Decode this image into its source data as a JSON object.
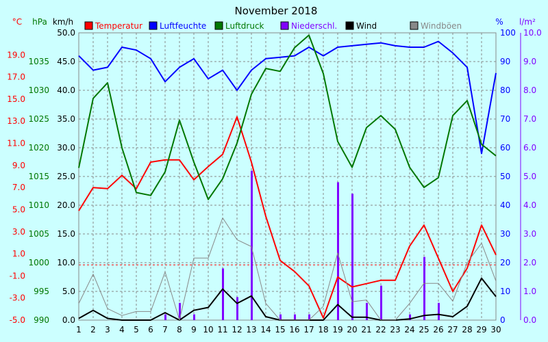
{
  "chart_data": {
    "type": "line",
    "title": "November 2018",
    "x": [
      1,
      2,
      3,
      4,
      5,
      6,
      7,
      8,
      9,
      10,
      11,
      12,
      13,
      14,
      15,
      16,
      17,
      18,
      19,
      20,
      21,
      22,
      23,
      24,
      25,
      26,
      27,
      28,
      29,
      30
    ],
    "axes": {
      "celsius": {
        "unit": "°C",
        "min": -5.0,
        "max": 21.0,
        "ticks": [
          -5.0,
          -3.0,
          -1.0,
          1.0,
          3.0,
          5.0,
          7.0,
          9.0,
          11.0,
          13.0,
          15.0,
          17.0,
          19.0
        ]
      },
      "hpa": {
        "unit": "hPa",
        "min": 990,
        "max": 1040,
        "ticks": [
          990,
          995,
          1000,
          1005,
          1010,
          1015,
          1020,
          1025,
          1030,
          1035
        ]
      },
      "kmh": {
        "unit": "km/h",
        "min": 0,
        "max": 50,
        "ticks": [
          0.0,
          5.0,
          10.0,
          15.0,
          20.0,
          25.0,
          30.0,
          35.0,
          40.0,
          45.0,
          50.0
        ]
      },
      "percent": {
        "unit": "%",
        "min": 0,
        "max": 100,
        "ticks": [
          0,
          10,
          20,
          30,
          40,
          50,
          60,
          70,
          80,
          90,
          100
        ]
      },
      "precip": {
        "unit": "l/m²",
        "min": 0,
        "max": 10,
        "ticks": [
          0.0,
          1.0,
          2.0,
          3.0,
          4.0,
          5.0,
          6.0,
          7.0,
          8.0,
          9.0,
          10.0
        ]
      }
    },
    "grid": true,
    "legend_position": "top",
    "series": [
      {
        "name": "Temperatur",
        "axis": "celsius",
        "color": "#ff0000",
        "values": [
          4.9,
          7.0,
          6.9,
          8.1,
          6.9,
          9.3,
          9.5,
          9.5,
          7.7,
          8.9,
          10.0,
          13.4,
          9.3,
          4.4,
          0.4,
          -0.6,
          -1.9,
          -4.8,
          -1.1,
          -2.0,
          -1.7,
          -1.4,
          -1.4,
          1.7,
          3.6,
          0.6,
          -2.4,
          -0.3,
          3.6,
          0.9
        ]
      },
      {
        "name": "Luftfeuchte",
        "axis": "percent",
        "color": "#0000ff",
        "values": [
          92,
          87,
          88,
          95,
          94,
          91,
          83,
          88,
          91,
          84,
          87,
          80,
          87,
          91,
          91.5,
          92,
          95,
          92,
          95,
          95.5,
          96,
          96.5,
          95.5,
          95,
          95,
          97,
          93,
          88,
          58,
          86
        ]
      },
      {
        "name": "Luftdruck",
        "axis": "hPa",
        "color": "#007700",
        "values": [
          1016.5,
          1028.6,
          1031.3,
          1020.0,
          1012.2,
          1011.7,
          1015.8,
          1024.8,
          1017.5,
          1011.0,
          1014.6,
          1020.8,
          1029.3,
          1033.8,
          1033.3,
          1037.4,
          1039.6,
          1032.9,
          1021.1,
          1016.6,
          1023.5,
          1025.6,
          1023.2,
          1016.6,
          1013.1,
          1014.8,
          1025.6,
          1028.2,
          1020.6,
          1018.6
        ]
      },
      {
        "name": "Niederschl.",
        "axis": "precip",
        "color": "#8000ff",
        "style": "bars",
        "values": [
          0,
          0,
          0,
          0,
          0,
          0,
          0.2,
          0.6,
          0.2,
          0,
          1.8,
          0.8,
          5.2,
          0,
          0.2,
          0.2,
          0.2,
          0,
          4.8,
          4.4,
          0.6,
          1.2,
          0,
          0.2,
          2.2,
          0.6,
          0,
          0,
          0,
          0
        ]
      },
      {
        "name": "Wind",
        "axis": "kmh",
        "color": "#000000",
        "values": [
          0.3,
          1.7,
          0.3,
          0,
          0,
          0,
          1.3,
          0,
          1.7,
          2.2,
          5.4,
          2.9,
          4.2,
          0.6,
          0,
          0,
          0,
          0,
          2.7,
          0.5,
          0.5,
          0,
          0,
          0.2,
          0.8,
          1.0,
          0.6,
          2.4,
          7.3,
          4.1
        ]
      },
      {
        "name": "Windböen",
        "axis": "kmh",
        "color": "#888888",
        "values": [
          2.9,
          8.0,
          2.0,
          0.8,
          1.5,
          1.5,
          8.4,
          0,
          10.8,
          10.8,
          17.8,
          14.0,
          12.8,
          2.9,
          0,
          0,
          0,
          2.4,
          11.7,
          3.2,
          3.5,
          0,
          0,
          2.9,
          6.4,
          6.4,
          3.3,
          10.0,
          13.4,
          6.8
        ]
      }
    ]
  }
}
